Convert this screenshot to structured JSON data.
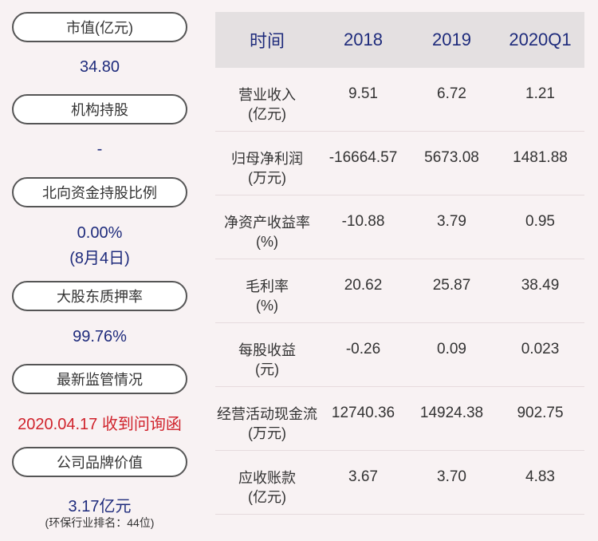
{
  "left_panel": {
    "items": [
      {
        "label": "市值(亿元)",
        "value": "34.80"
      },
      {
        "label": "机构持股",
        "value": "-"
      },
      {
        "label": "北向资金持股比例",
        "value": "0.00%",
        "value2": "(8月4日)"
      },
      {
        "label": "大股东质押率",
        "value": "99.76%"
      },
      {
        "label": "最新监管情况",
        "value": "2020.04.17 收到问询函"
      },
      {
        "label": "公司品牌价值",
        "value": "3.17亿元",
        "note": "(环保行业排名：44位)"
      }
    ]
  },
  "table": {
    "headers": [
      "时间",
      "2018",
      "2019",
      "2020Q1"
    ],
    "rows": [
      {
        "name": "营业收入",
        "unit": "(亿元)",
        "values": [
          "9.51",
          "6.72",
          "1.21"
        ]
      },
      {
        "name": "归母净利润",
        "unit": "(万元)",
        "values": [
          "-16664.57",
          "5673.08",
          "1481.88"
        ]
      },
      {
        "name": "净资产收益率",
        "unit": "(%)",
        "values": [
          "-10.88",
          "3.79",
          "0.95"
        ]
      },
      {
        "name": "毛利率",
        "unit": "(%)",
        "values": [
          "20.62",
          "25.87",
          "38.49"
        ]
      },
      {
        "name": "每股收益",
        "unit": "(元)",
        "values": [
          "-0.26",
          "0.09",
          "0.023"
        ]
      },
      {
        "name": "经营活动现金流",
        "unit": "(万元)",
        "values": [
          "12740.36",
          "14924.38",
          "902.75"
        ]
      },
      {
        "name": "应收账款",
        "unit": "(亿元)",
        "values": [
          "3.67",
          "3.70",
          "4.83"
        ]
      }
    ]
  },
  "colors": {
    "value_blue": "#1e2b7c",
    "alert_red": "#d0232c",
    "background": "#f8f2f3",
    "header_bg": "#e4e0e1"
  }
}
